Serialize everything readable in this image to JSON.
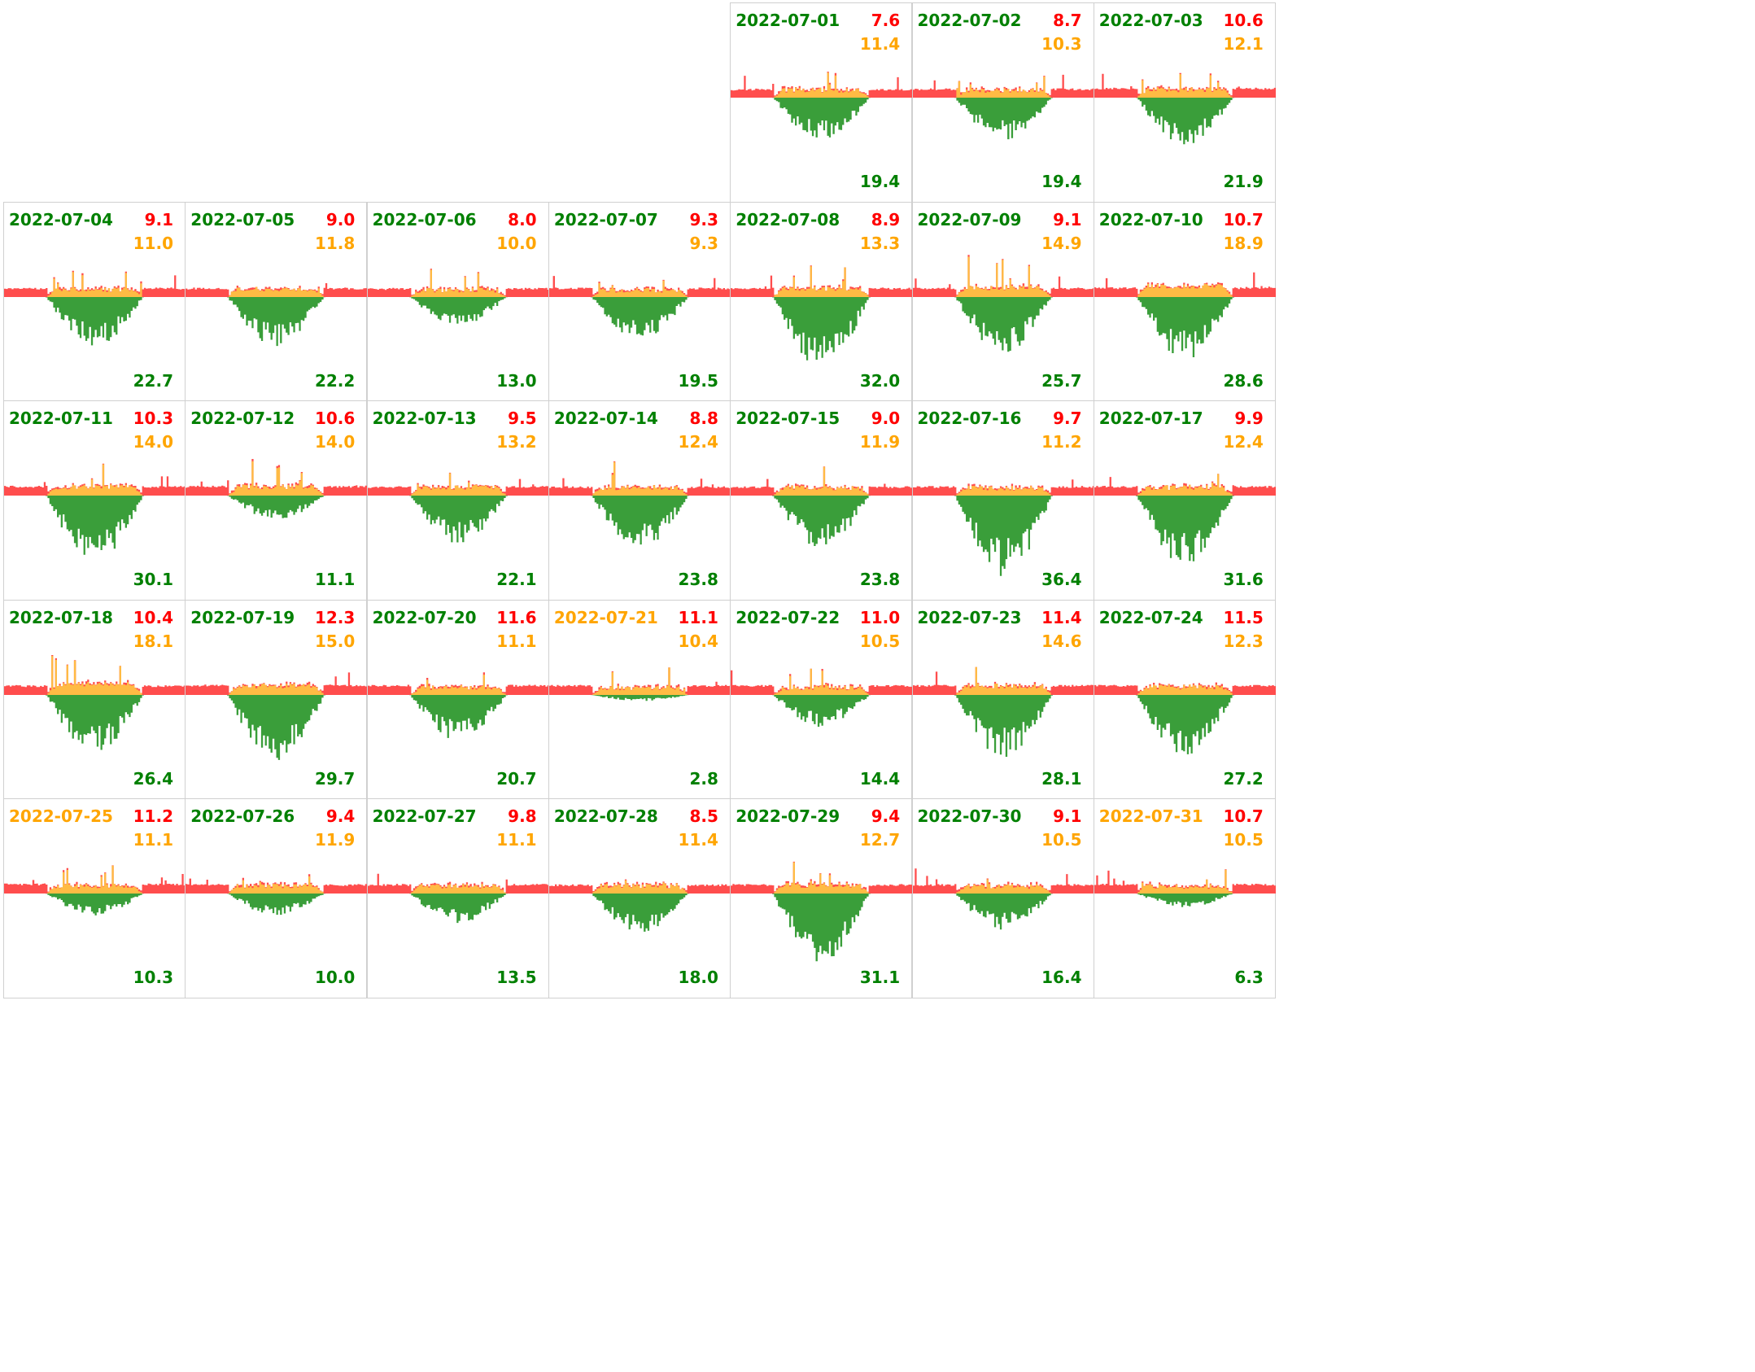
{
  "colors": {
    "import": "#ff0000",
    "self_consumption": "#ffa500",
    "export": "#008000",
    "import_fill": "#ff4d4d",
    "self_fill": "#ffbb44",
    "export_fill": "#3a9e3a",
    "grid_line": "#d0d0d0"
  },
  "chart_data": {
    "type": "area",
    "layout": "calendar-month",
    "month": "2022-07",
    "first_weekday_column": 4,
    "columns": 7,
    "days": [
      {
        "date": "2022-07-01",
        "import": "7.6",
        "self": "11.4",
        "export": "19.4",
        "date_color": "green"
      },
      {
        "date": "2022-07-02",
        "import": "8.7",
        "self": "10.3",
        "export": "19.4",
        "date_color": "green"
      },
      {
        "date": "2022-07-03",
        "import": "10.6",
        "self": "12.1",
        "export": "21.9",
        "date_color": "green"
      },
      {
        "date": "2022-07-04",
        "import": "9.1",
        "self": "11.0",
        "export": "22.7",
        "date_color": "green"
      },
      {
        "date": "2022-07-05",
        "import": "9.0",
        "self": "11.8",
        "export": "22.2",
        "date_color": "green"
      },
      {
        "date": "2022-07-06",
        "import": "8.0",
        "self": "10.0",
        "export": "13.0",
        "date_color": "green"
      },
      {
        "date": "2022-07-07",
        "import": "9.3",
        "self": "9.3",
        "export": "19.5",
        "date_color": "green"
      },
      {
        "date": "2022-07-08",
        "import": "8.9",
        "self": "13.3",
        "export": "32.0",
        "date_color": "green"
      },
      {
        "date": "2022-07-09",
        "import": "9.1",
        "self": "14.9",
        "export": "25.7",
        "date_color": "green"
      },
      {
        "date": "2022-07-10",
        "import": "10.7",
        "self": "18.9",
        "export": "28.6",
        "date_color": "green"
      },
      {
        "date": "2022-07-11",
        "import": "10.3",
        "self": "14.0",
        "export": "30.1",
        "date_color": "green"
      },
      {
        "date": "2022-07-12",
        "import": "10.6",
        "self": "14.0",
        "export": "11.1",
        "date_color": "green"
      },
      {
        "date": "2022-07-13",
        "import": "9.5",
        "self": "13.2",
        "export": "22.1",
        "date_color": "green"
      },
      {
        "date": "2022-07-14",
        "import": "8.8",
        "self": "12.4",
        "export": "23.8",
        "date_color": "green"
      },
      {
        "date": "2022-07-15",
        "import": "9.0",
        "self": "11.9",
        "export": "23.8",
        "date_color": "green"
      },
      {
        "date": "2022-07-16",
        "import": "9.7",
        "self": "11.2",
        "export": "36.4",
        "date_color": "green"
      },
      {
        "date": "2022-07-17",
        "import": "9.9",
        "self": "12.4",
        "export": "31.6",
        "date_color": "green"
      },
      {
        "date": "2022-07-18",
        "import": "10.4",
        "self": "18.1",
        "export": "26.4",
        "date_color": "green"
      },
      {
        "date": "2022-07-19",
        "import": "12.3",
        "self": "15.0",
        "export": "29.7",
        "date_color": "green"
      },
      {
        "date": "2022-07-20",
        "import": "11.6",
        "self": "11.1",
        "export": "20.7",
        "date_color": "green"
      },
      {
        "date": "2022-07-21",
        "import": "11.1",
        "self": "10.4",
        "export": "2.8",
        "date_color": "orange"
      },
      {
        "date": "2022-07-22",
        "import": "11.0",
        "self": "10.5",
        "export": "14.4",
        "date_color": "green"
      },
      {
        "date": "2022-07-23",
        "import": "11.4",
        "self": "14.6",
        "export": "28.1",
        "date_color": "green"
      },
      {
        "date": "2022-07-24",
        "import": "11.5",
        "self": "12.3",
        "export": "27.2",
        "date_color": "green"
      },
      {
        "date": "2022-07-25",
        "import": "11.2",
        "self": "11.1",
        "export": "10.3",
        "date_color": "orange"
      },
      {
        "date": "2022-07-26",
        "import": "9.4",
        "self": "11.9",
        "export": "10.0",
        "date_color": "green"
      },
      {
        "date": "2022-07-27",
        "import": "9.8",
        "self": "11.1",
        "export": "13.5",
        "date_color": "green"
      },
      {
        "date": "2022-07-28",
        "import": "8.5",
        "self": "11.4",
        "export": "18.0",
        "date_color": "green"
      },
      {
        "date": "2022-07-29",
        "import": "9.4",
        "self": "12.7",
        "export": "31.1",
        "date_color": "green"
      },
      {
        "date": "2022-07-30",
        "import": "9.1",
        "self": "10.5",
        "export": "16.4",
        "date_color": "green"
      },
      {
        "date": "2022-07-31",
        "import": "10.7",
        "self": "10.5",
        "export": "6.3",
        "date_color": "orange"
      }
    ]
  }
}
